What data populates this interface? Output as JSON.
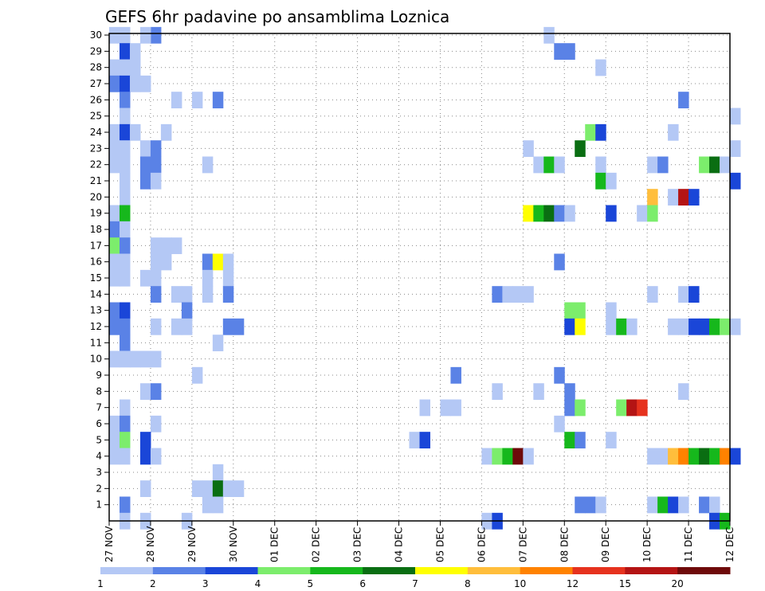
{
  "chart_data": {
    "type": "heatmap",
    "title": "GEFS 6hr padavine po ansamblima Loznica",
    "xlabel": "",
    "ylabel": "",
    "x_ticks": [
      "27 NOV",
      "28 NOV",
      "29 NOV",
      "30 NOV",
      "01 DEC",
      "02 DEC",
      "03 DEC",
      "04 DEC",
      "05 DEC",
      "06 DEC",
      "07 DEC",
      "08 DEC",
      "09 DEC",
      "10 DEC",
      "11 DEC",
      "12 DEC"
    ],
    "y_ticks": [
      "1",
      "2",
      "3",
      "4",
      "5",
      "6",
      "7",
      "8",
      "9",
      "10",
      "11",
      "12",
      "13",
      "14",
      "15",
      "16",
      "17",
      "18",
      "19",
      "20",
      "21",
      "22",
      "23",
      "24",
      "25",
      "26",
      "27",
      "28",
      "29",
      "30"
    ],
    "steps_per_day": 4,
    "ylim": [
      0,
      30
    ],
    "grid": true,
    "colorbar": {
      "labels": [
        "1",
        "2",
        "3",
        "4",
        "5",
        "6",
        "7",
        "8",
        "10",
        "12",
        "15",
        "20"
      ],
      "colors": [
        "#b4c8f5",
        "#5a82e6",
        "#1a46d8",
        "#7ced6c",
        "#16b81c",
        "#0a6e12",
        "#ffff00",
        "#ffbe3c",
        "#ff8200",
        "#e6321e",
        "#b41414",
        "#6e0a0a"
      ]
    },
    "cells": [
      [
        0,
        30,
        1
      ],
      [
        1,
        30,
        1
      ],
      [
        4,
        30,
        2
      ],
      [
        3,
        30,
        1
      ],
      [
        42,
        30,
        1
      ],
      [
        1,
        29,
        3
      ],
      [
        2,
        29,
        1
      ],
      [
        43,
        29,
        2
      ],
      [
        44,
        29,
        2
      ],
      [
        0,
        28,
        1
      ],
      [
        1,
        28,
        1
      ],
      [
        2,
        28,
        1
      ],
      [
        47,
        28,
        1
      ],
      [
        0,
        27,
        2
      ],
      [
        1,
        27,
        3
      ],
      [
        2,
        27,
        1
      ],
      [
        3,
        27,
        1
      ],
      [
        1,
        26,
        2
      ],
      [
        6,
        26,
        1
      ],
      [
        8,
        26,
        1
      ],
      [
        10,
        26,
        2
      ],
      [
        55,
        26,
        2
      ],
      [
        1,
        25,
        1
      ],
      [
        60,
        25,
        1
      ],
      [
        0,
        24,
        1
      ],
      [
        1,
        24,
        3
      ],
      [
        2,
        24,
        1
      ],
      [
        5,
        24,
        1
      ],
      [
        46,
        24,
        4
      ],
      [
        47,
        24,
        3
      ],
      [
        54,
        24,
        1
      ],
      [
        0,
        23,
        1
      ],
      [
        1,
        23,
        1
      ],
      [
        3,
        23,
        1
      ],
      [
        4,
        23,
        2
      ],
      [
        40,
        23,
        1
      ],
      [
        45,
        23,
        6
      ],
      [
        60,
        23,
        1
      ],
      [
        0,
        22,
        1
      ],
      [
        1,
        22,
        1
      ],
      [
        3,
        22,
        2
      ],
      [
        4,
        22,
        2
      ],
      [
        9,
        22,
        1
      ],
      [
        41,
        22,
        1
      ],
      [
        42,
        22,
        5
      ],
      [
        43,
        22,
        1
      ],
      [
        47,
        22,
        1
      ],
      [
        52,
        22,
        1
      ],
      [
        53,
        22,
        2
      ],
      [
        57,
        22,
        4
      ],
      [
        58,
        22,
        6
      ],
      [
        59,
        22,
        1
      ],
      [
        1,
        21,
        1
      ],
      [
        3,
        21,
        2
      ],
      [
        4,
        21,
        1
      ],
      [
        47,
        21,
        5
      ],
      [
        48,
        21,
        1
      ],
      [
        60,
        21,
        3
      ],
      [
        1,
        20,
        1
      ],
      [
        52,
        20,
        8
      ],
      [
        54,
        20,
        1
      ],
      [
        55,
        20,
        11
      ],
      [
        56,
        20,
        3
      ],
      [
        0,
        19,
        1
      ],
      [
        1,
        19,
        5
      ],
      [
        40,
        19,
        7
      ],
      [
        41,
        19,
        5
      ],
      [
        42,
        19,
        6
      ],
      [
        43,
        19,
        2
      ],
      [
        44,
        19,
        1
      ],
      [
        48,
        19,
        3
      ],
      [
        51,
        19,
        1
      ],
      [
        52,
        19,
        4
      ],
      [
        0,
        18,
        2
      ],
      [
        1,
        18,
        1
      ],
      [
        0,
        17,
        4
      ],
      [
        1,
        17,
        2
      ],
      [
        4,
        17,
        1
      ],
      [
        5,
        17,
        1
      ],
      [
        6,
        17,
        1
      ],
      [
        0,
        16,
        1
      ],
      [
        1,
        16,
        1
      ],
      [
        4,
        16,
        1
      ],
      [
        5,
        16,
        1
      ],
      [
        9,
        16,
        2
      ],
      [
        10,
        16,
        7
      ],
      [
        11,
        16,
        1
      ],
      [
        43,
        16,
        2
      ],
      [
        0,
        15,
        1
      ],
      [
        1,
        15,
        1
      ],
      [
        3,
        15,
        1
      ],
      [
        4,
        15,
        1
      ],
      [
        9,
        15,
        1
      ],
      [
        11,
        15,
        1
      ],
      [
        4,
        14,
        2
      ],
      [
        6,
        14,
        1
      ],
      [
        7,
        14,
        1
      ],
      [
        9,
        14,
        1
      ],
      [
        11,
        14,
        2
      ],
      [
        37,
        14,
        2
      ],
      [
        38,
        14,
        1
      ],
      [
        39,
        14,
        1
      ],
      [
        40,
        14,
        1
      ],
      [
        52,
        14,
        1
      ],
      [
        55,
        14,
        1
      ],
      [
        56,
        14,
        3
      ],
      [
        0,
        13,
        2
      ],
      [
        1,
        13,
        3
      ],
      [
        7,
        13,
        2
      ],
      [
        44,
        13,
        4
      ],
      [
        45,
        13,
        4
      ],
      [
        48,
        13,
        1
      ],
      [
        0,
        12,
        2
      ],
      [
        1,
        12,
        2
      ],
      [
        4,
        12,
        1
      ],
      [
        6,
        12,
        1
      ],
      [
        7,
        12,
        1
      ],
      [
        11,
        12,
        2
      ],
      [
        12,
        12,
        2
      ],
      [
        44,
        12,
        3
      ],
      [
        45,
        12,
        7
      ],
      [
        48,
        12,
        1
      ],
      [
        49,
        12,
        5
      ],
      [
        50,
        12,
        1
      ],
      [
        54,
        12,
        1
      ],
      [
        55,
        12,
        1
      ],
      [
        56,
        12,
        3
      ],
      [
        57,
        12,
        3
      ],
      [
        58,
        12,
        5
      ],
      [
        59,
        12,
        4
      ],
      [
        60,
        12,
        1
      ],
      [
        1,
        11,
        2
      ],
      [
        10,
        11,
        1
      ],
      [
        0,
        10,
        1
      ],
      [
        1,
        10,
        1
      ],
      [
        2,
        10,
        1
      ],
      [
        3,
        10,
        1
      ],
      [
        4,
        10,
        1
      ],
      [
        8,
        9,
        1
      ],
      [
        33,
        9,
        2
      ],
      [
        43,
        9,
        2
      ],
      [
        3,
        8,
        1
      ],
      [
        4,
        8,
        2
      ],
      [
        37,
        8,
        1
      ],
      [
        41,
        8,
        1
      ],
      [
        44,
        8,
        2
      ],
      [
        55,
        8,
        1
      ],
      [
        1,
        7,
        1
      ],
      [
        30,
        7,
        1
      ],
      [
        32,
        7,
        1
      ],
      [
        33,
        7,
        1
      ],
      [
        44,
        7,
        2
      ],
      [
        45,
        7,
        4
      ],
      [
        49,
        7,
        4
      ],
      [
        50,
        7,
        11
      ],
      [
        51,
        7,
        10
      ],
      [
        0,
        6,
        1
      ],
      [
        1,
        6,
        2
      ],
      [
        4,
        6,
        1
      ],
      [
        43,
        6,
        1
      ],
      [
        0,
        5,
        1
      ],
      [
        1,
        5,
        4
      ],
      [
        3,
        5,
        3
      ],
      [
        29,
        5,
        1
      ],
      [
        30,
        5,
        3
      ],
      [
        44,
        5,
        5
      ],
      [
        45,
        5,
        2
      ],
      [
        48,
        5,
        1
      ],
      [
        0,
        4,
        1
      ],
      [
        1,
        4,
        1
      ],
      [
        3,
        4,
        3
      ],
      [
        4,
        4,
        1
      ],
      [
        36,
        4,
        1
      ],
      [
        37,
        4,
        4
      ],
      [
        38,
        4,
        5
      ],
      [
        39,
        4,
        12
      ],
      [
        40,
        4,
        1
      ],
      [
        52,
        4,
        1
      ],
      [
        53,
        4,
        1
      ],
      [
        54,
        4,
        8
      ],
      [
        55,
        4,
        9
      ],
      [
        56,
        4,
        5
      ],
      [
        57,
        4,
        6
      ],
      [
        58,
        4,
        5
      ],
      [
        59,
        4,
        9
      ],
      [
        60,
        4,
        3
      ],
      [
        10,
        3,
        1
      ],
      [
        3,
        2,
        1
      ],
      [
        8,
        2,
        1
      ],
      [
        9,
        2,
        1
      ],
      [
        10,
        2,
        6
      ],
      [
        11,
        2,
        1
      ],
      [
        12,
        2,
        1
      ],
      [
        1,
        1,
        2
      ],
      [
        9,
        1,
        1
      ],
      [
        10,
        1,
        1
      ],
      [
        45,
        1,
        2
      ],
      [
        46,
        1,
        2
      ],
      [
        47,
        1,
        1
      ],
      [
        52,
        1,
        1
      ],
      [
        53,
        1,
        5
      ],
      [
        54,
        1,
        3
      ],
      [
        55,
        1,
        1
      ],
      [
        57,
        1,
        2
      ],
      [
        58,
        1,
        1
      ],
      [
        1,
        0,
        1
      ],
      [
        3,
        0,
        1
      ],
      [
        7,
        0,
        1
      ],
      [
        36,
        0,
        1
      ],
      [
        37,
        0,
        3
      ],
      [
        58,
        0,
        3
      ],
      [
        59,
        0,
        5
      ]
    ]
  }
}
